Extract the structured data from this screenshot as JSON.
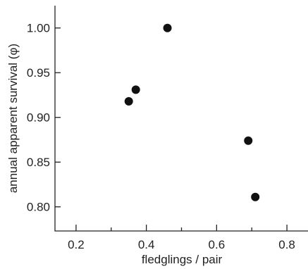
{
  "chart_data": {
    "type": "scatter",
    "title": "",
    "xlabel": "fledglings / pair",
    "ylabel": "annual apparent survival (φ)",
    "xlim": [
      0.14,
      0.86
    ],
    "ylim": [
      0.773,
      1.025
    ],
    "x_ticks": [
      0.2,
      0.4,
      0.6,
      0.8
    ],
    "x_tick_labels": [
      "0.2",
      "0.4",
      "0.6",
      "0.8"
    ],
    "x_minor_ticks": [
      0.3,
      0.5,
      0.7
    ],
    "y_ticks": [
      0.8,
      0.85,
      0.9,
      0.95,
      1.0
    ],
    "y_tick_labels": [
      "0.80",
      "0.85",
      "0.90",
      "0.95",
      "1.00"
    ],
    "grid": false,
    "series": [
      {
        "points": [
          {
            "x": 0.35,
            "y": 0.918
          },
          {
            "x": 0.37,
            "y": 0.931
          },
          {
            "x": 0.46,
            "y": 1.0
          },
          {
            "x": 0.69,
            "y": 0.874
          },
          {
            "x": 0.71,
            "y": 0.811
          }
        ],
        "color": "#111111"
      }
    ]
  }
}
